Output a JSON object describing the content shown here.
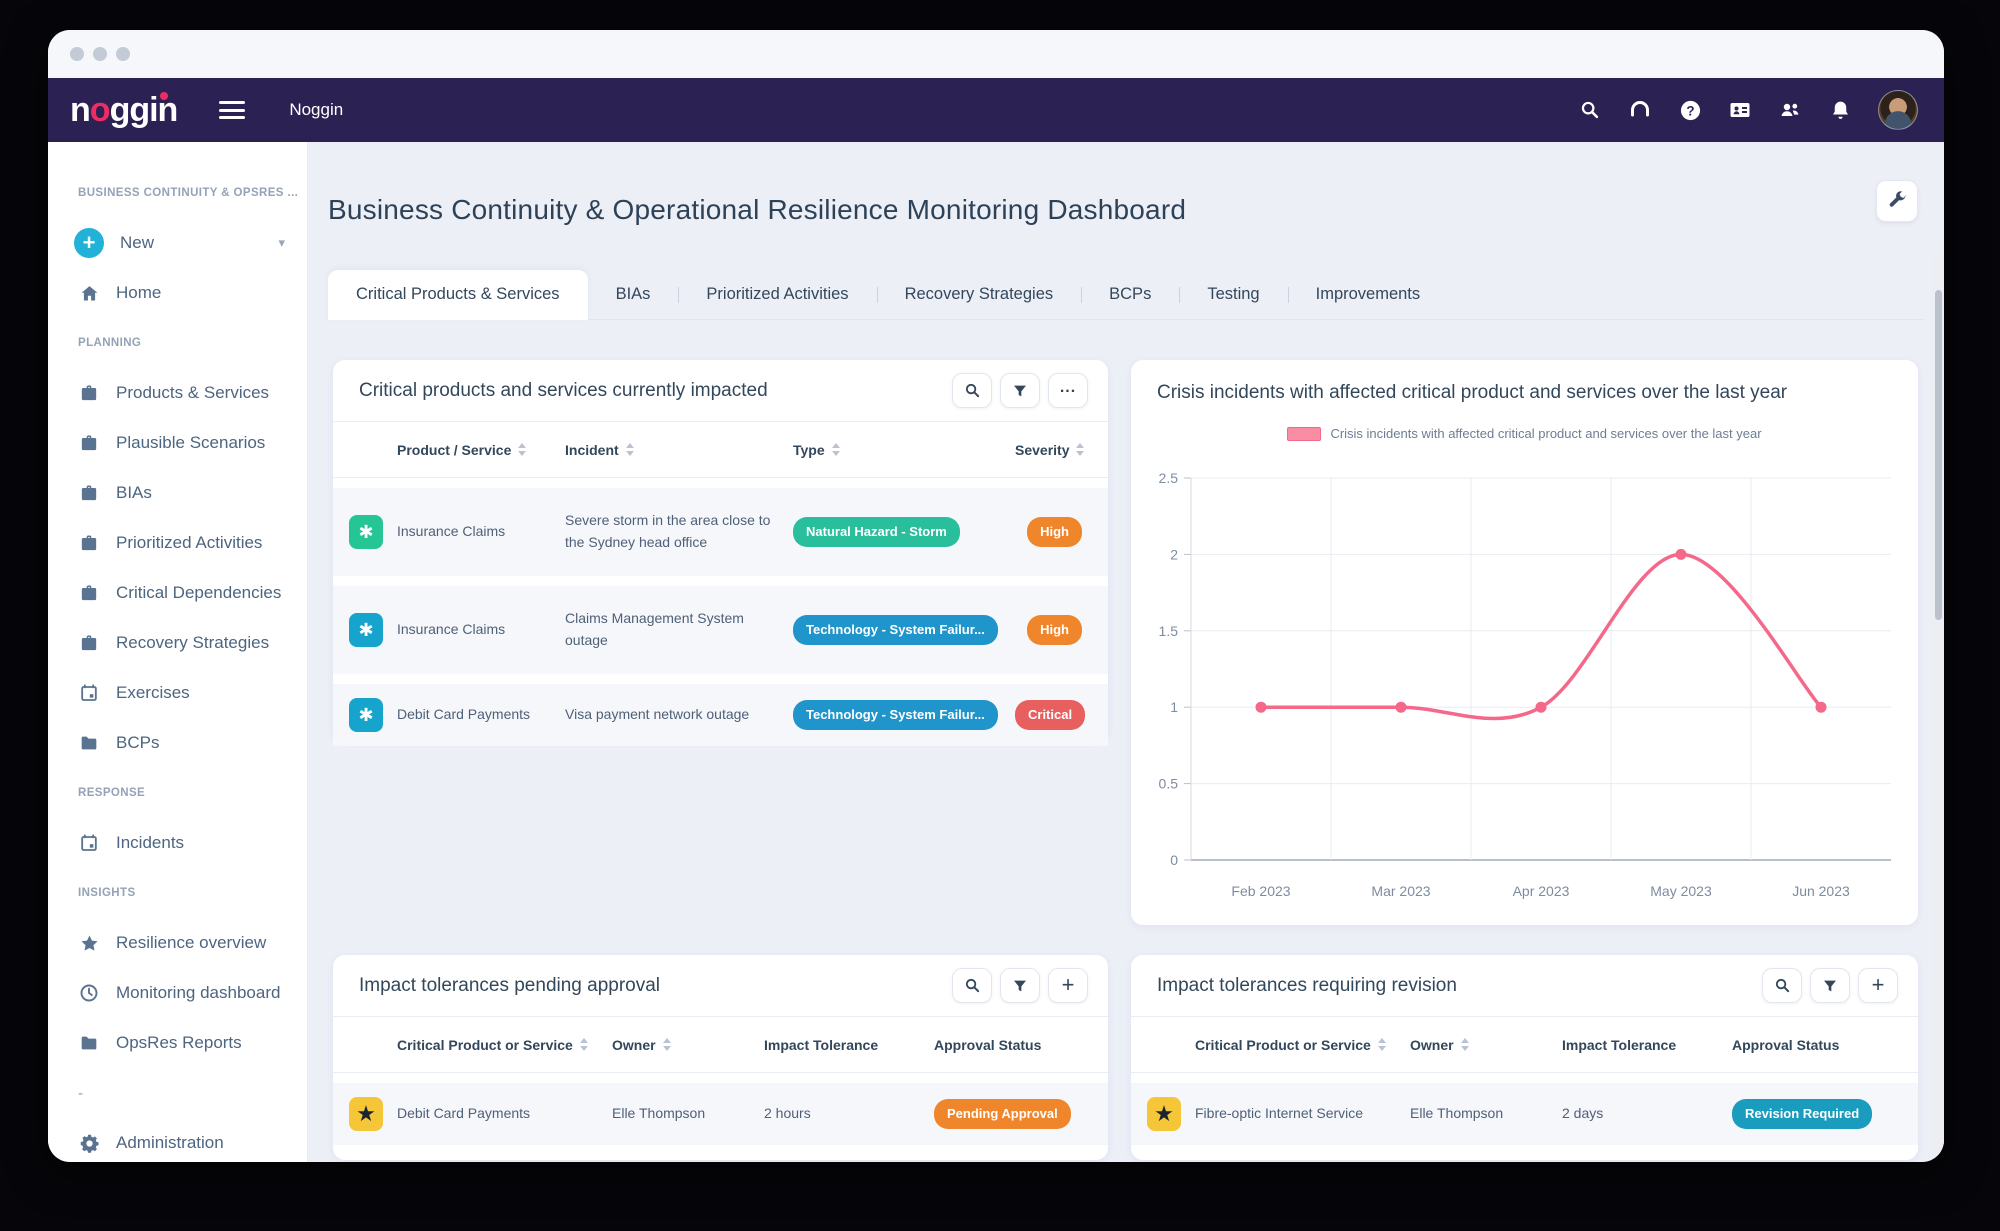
{
  "topbar": {
    "logo": "noggin",
    "product": "Noggin"
  },
  "sidebar": {
    "heading": "BUSINESS CONTINUITY & OPSRES ...",
    "new_label": "New",
    "home": "Home",
    "sections": [
      {
        "heading": "PLANNING",
        "items": [
          "Products & Services",
          "Plausible Scenarios",
          "BIAs",
          "Prioritized Activities",
          "Critical Dependencies",
          "Recovery Strategies",
          "Exercises",
          "BCPs"
        ]
      },
      {
        "heading": "RESPONSE",
        "items": [
          "Incidents"
        ]
      },
      {
        "heading": "INSIGHTS",
        "items": [
          "Resilience overview",
          "Monitoring dashboard",
          "OpsRes Reports"
        ]
      }
    ],
    "stub": "-",
    "admin": "Administration"
  },
  "header": {
    "title": "Business Continuity & Operational Resilience Monitoring Dashboard"
  },
  "tabs": {
    "labels": [
      "Critical Products & Services",
      "BIAs",
      "Prioritized Activities",
      "Recovery Strategies",
      "BCPs",
      "Testing",
      "Improvements"
    ],
    "active_index": 0
  },
  "panels": {
    "impacted": {
      "title": "Critical products and services currently impacted",
      "columns": [
        "Product / Service",
        "Incident",
        "Type",
        "Severity"
      ],
      "rows": [
        {
          "icon": "asterisk",
          "icon_color": "#26c596",
          "product": "Insurance Claims",
          "incident": "Severe storm in the area close to the Sydney head office",
          "type": "Natural Hazard - Storm",
          "type_color": "#29bf9c",
          "severity": "High",
          "severity_color": "#f0862c"
        },
        {
          "icon": "asterisk",
          "icon_color": "#17a4cc",
          "product": "Insurance Claims",
          "incident": "Claims Management System outage",
          "type": "Technology - System Failur...",
          "type_color": "#2095cb",
          "severity": "High",
          "severity_color": "#f0862c"
        },
        {
          "icon": "asterisk",
          "icon_color": "#17a4cc",
          "product": "Debit Card Payments",
          "incident": "Visa payment network outage",
          "type": "Technology - System Failur...",
          "type_color": "#2095cb",
          "severity": "Critical",
          "severity_color": "#e85f5f"
        }
      ]
    },
    "chart": {
      "title": "Crisis incidents with affected critical product and services over the last year",
      "legend": "Crisis incidents with affected critical product and services over the last year"
    },
    "pending": {
      "title": "Impact tolerances pending approval",
      "columns": [
        "Critical Product or Service",
        "Owner",
        "Impact Tolerance",
        "Approval Status"
      ],
      "rows": [
        {
          "icon": "star",
          "icon_color": "#f5c637",
          "product": "Debit Card Payments",
          "owner": "Elle Thompson",
          "tolerance": "2 hours",
          "status": "Pending Approval",
          "status_color": "#f0862c"
        }
      ]
    },
    "revision": {
      "title": "Impact tolerances requiring revision",
      "columns": [
        "Critical Product or Service",
        "Owner",
        "Impact Tolerance",
        "Approval Status"
      ],
      "rows": [
        {
          "icon": "star",
          "icon_color": "#f5c637",
          "product": "Fibre-optic Internet Service",
          "owner": "Elle Thompson",
          "tolerance": "2 days",
          "status": "Revision Required",
          "status_color": "#1a9cbe"
        }
      ]
    }
  },
  "chart_data": {
    "type": "line",
    "x": [
      "Feb 2023",
      "Mar 2023",
      "Apr 2023",
      "May 2023",
      "Jun 2023"
    ],
    "series": [
      {
        "name": "Crisis incidents with affected critical product and services over the last year",
        "values": [
          1,
          1,
          1,
          2,
          1
        ]
      }
    ],
    "title": "Crisis incidents with affected critical product and services over the last year",
    "xlabel": "",
    "ylabel": "",
    "ylim": [
      0,
      2.5
    ],
    "yticks": [
      0,
      0.5,
      1,
      1.5,
      2,
      2.5
    ],
    "grid": true,
    "legend_position": "top",
    "line_color": "#f4688a"
  },
  "colors": {
    "navbar": "#2b2153",
    "brand_pink": "#ed2c63",
    "teal_accent": "#22b2d8",
    "page_bg": "#edeff7"
  }
}
